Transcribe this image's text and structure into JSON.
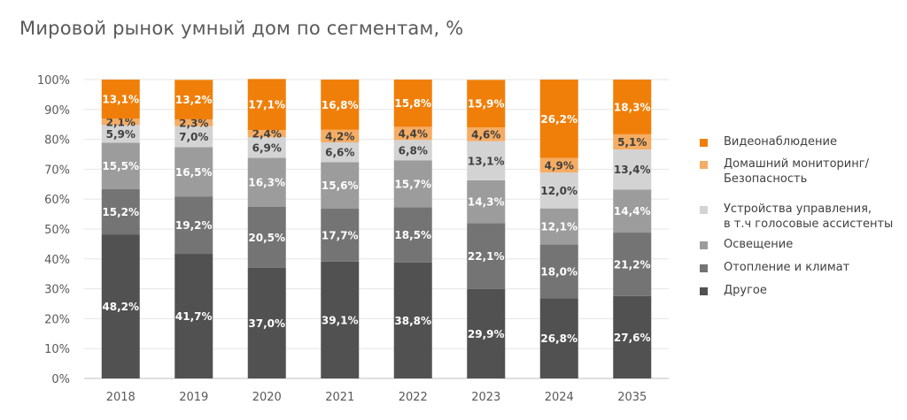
{
  "title": "Мировой рынок умный дом по сегментам, %",
  "chart_data": {
    "type": "bar",
    "stacked": true,
    "categories": [
      "2018",
      "2019",
      "2020",
      "2021",
      "2022",
      "2023",
      "2024",
      "2035"
    ],
    "ylim": [
      0,
      100
    ],
    "yticks": [
      {
        "value": 0,
        "label": "0%"
      },
      {
        "value": 10,
        "label": "10%"
      },
      {
        "value": 20,
        "label": "20%"
      },
      {
        "value": 30,
        "label": "30%"
      },
      {
        "value": 40,
        "label": "40%"
      },
      {
        "value": 50,
        "label": "50%"
      },
      {
        "value": 60,
        "label": "60%"
      },
      {
        "value": 70,
        "label": "70%"
      },
      {
        "value": 80,
        "label": "80%"
      },
      {
        "value": 90,
        "label": "90%"
      },
      {
        "value": 100,
        "label": "100%"
      }
    ],
    "grid": true,
    "legend_position": "right",
    "series": [
      {
        "name": "Другое",
        "color": "#515151",
        "label_color": "#ffffff",
        "values": [
          48.2,
          41.7,
          37.0,
          39.1,
          38.8,
          29.9,
          26.8,
          27.6
        ],
        "labels": [
          "48,2%",
          "41,7%",
          "37,0%",
          "39,1%",
          "38,8%",
          "29,9%",
          "26,8%",
          "27,6%"
        ]
      },
      {
        "name": "Отопление и климат",
        "color": "#747474",
        "label_color": "#ffffff",
        "values": [
          15.2,
          19.2,
          20.5,
          17.7,
          18.5,
          22.1,
          18.0,
          21.2
        ],
        "labels": [
          "15,2%",
          "19,2%",
          "20,5%",
          "17,7%",
          "18,5%",
          "22,1%",
          "18,0%",
          "21,2%"
        ]
      },
      {
        "name": "Освещение",
        "color": "#9c9c9c",
        "label_color": "#ffffff",
        "values": [
          15.5,
          16.5,
          16.3,
          15.6,
          15.7,
          14.3,
          12.1,
          14.4
        ],
        "labels": [
          "15,5%",
          "16,5%",
          "16,3%",
          "15,6%",
          "15,7%",
          "14,3%",
          "12,1%",
          "14,4%"
        ]
      },
      {
        "name": "Устройства управления,\nв т.ч голосовые ассистенты",
        "color": "#d3d3d3",
        "label_color": "#404040",
        "values": [
          5.9,
          7.0,
          6.9,
          6.6,
          6.8,
          13.1,
          12.0,
          13.4
        ],
        "labels": [
          "5,9%",
          "7,0%",
          "6,9%",
          "6,6%",
          "6,8%",
          "13,1%",
          "12,0%",
          "13,4%"
        ]
      },
      {
        "name": "Домашний мониторинг/\nБезопасность",
        "color": "#f5ac63",
        "label_color": "#404040",
        "values": [
          2.1,
          2.3,
          2.4,
          4.2,
          4.4,
          4.6,
          4.9,
          5.1
        ],
        "labels": [
          "2,1%",
          "2,3%",
          "2,4%",
          "4,2%",
          "4,4%",
          "4,6%",
          "4,9%",
          "5,1%"
        ]
      },
      {
        "name": "Видеонаблюдение",
        "color": "#f07f0a",
        "label_color": "#ffffff",
        "values": [
          13.1,
          13.2,
          17.1,
          16.8,
          15.8,
          15.9,
          26.2,
          18.3
        ],
        "labels": [
          "13,1%",
          "13,2%",
          "17,1%",
          "16,8%",
          "15,8%",
          "15,9%",
          "26,2%",
          "18,3%"
        ]
      }
    ]
  }
}
